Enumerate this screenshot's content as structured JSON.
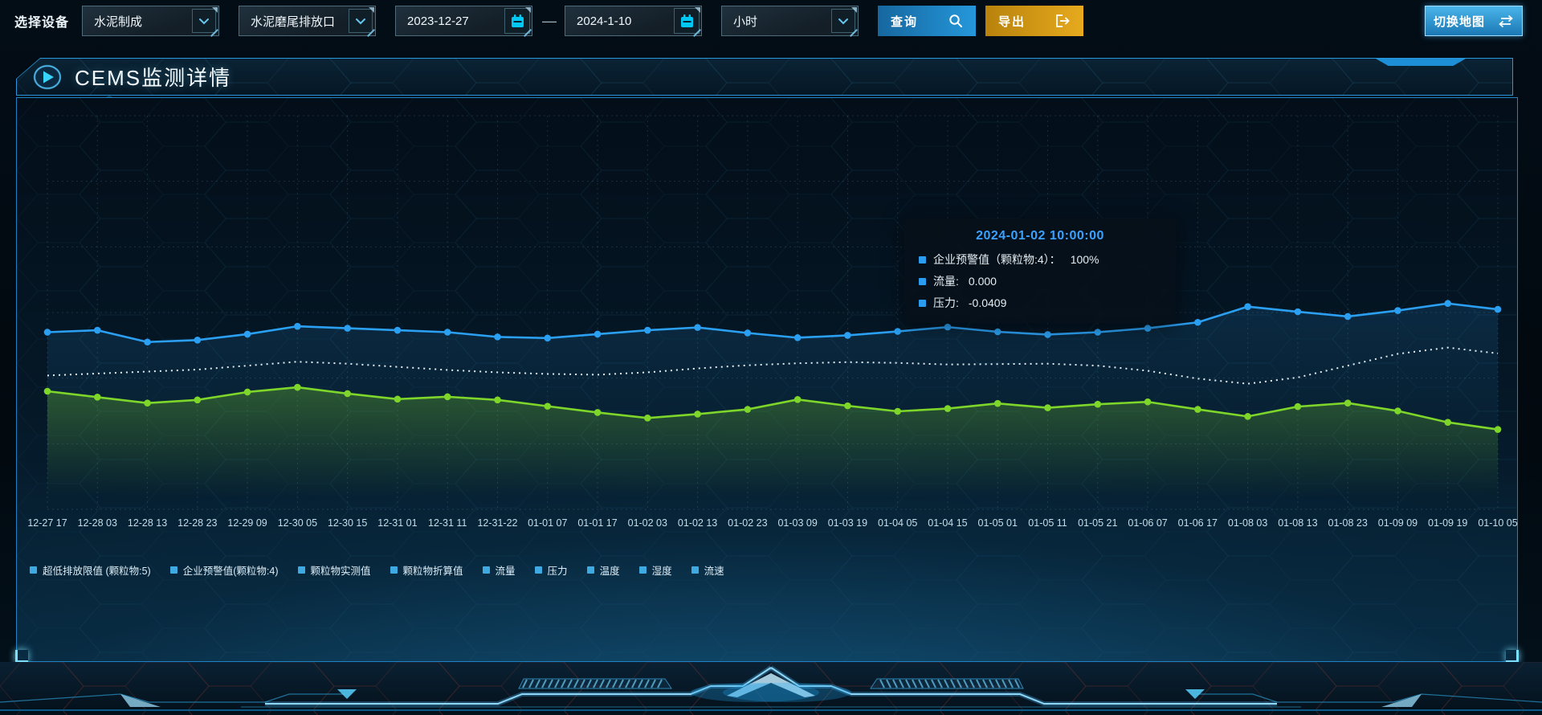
{
  "toolbar": {
    "device_label": "选择设备",
    "line_select": "水泥制成",
    "outlet_select": "水泥磨尾排放口",
    "start_date": "2023-12-27",
    "range_separator": "—",
    "end_date": "2024-1-10",
    "interval_select": "小时",
    "query_label": "查询",
    "export_label": "导出",
    "switch_map_label": "切换地图"
  },
  "panel": {
    "title": "CEMS监测详情"
  },
  "tooltip": {
    "title": "2024-01-02 10:00:00",
    "marker_color": "#2b9df0",
    "title_color": "#3ba1ff",
    "rows": [
      {
        "label": "企业预警值（颗粒物:4）：",
        "value": "100%"
      },
      {
        "label": "流量:",
        "value": "0.000"
      },
      {
        "label": "压力:",
        "value": "-0.0409"
      }
    ]
  },
  "chart_data": {
    "type": "line",
    "title": "CEMS监测详情",
    "grid": {
      "dashed": true
    },
    "y_axis": {
      "tick_labels_visible": false,
      "value_encoding": "percent_of_plot_height_estimated"
    },
    "x_axis": {
      "labels": [
        "12-27 17",
        "12-28 03",
        "12-28 13",
        "12-28 23",
        "12-29 09",
        "12-30 05",
        "12-30 15",
        "12-31 01",
        "12-31 11",
        "12-31-22",
        "01-01 07",
        "01-01 17",
        "01-02 03",
        "01-02 13",
        "01-02 23",
        "01-03 09",
        "01-03 19",
        "01-04 05",
        "01-04 15",
        "01-05 01",
        "01-05 11",
        "01-05 21",
        "01-06 07",
        "01-06 17",
        "01-08 03",
        "01-08 13",
        "01-08 23",
        "01-09 09",
        "01-09 19",
        "01-10 05"
      ]
    },
    "legend": {
      "position": "bottom-left",
      "marker_color": "#3fa9e2",
      "items": [
        "超低排放限值 (颗粒物:5)",
        "企业预警值(颗粒物:4)",
        "颗粒物实测值",
        "颗粒物折算值",
        "流量",
        "压力",
        "温度",
        "湿度",
        "流速"
      ]
    },
    "series": [
      {
        "name": "企业预警值(颗粒物:4)",
        "color": "#e3edf2",
        "style": "dotted",
        "markers": false,
        "area": false,
        "area_opacity": 0,
        "values_pct": [
          34,
          34.5,
          35,
          35.5,
          36.5,
          37.5,
          37,
          36.2,
          35.4,
          34.8,
          34.4,
          34.2,
          34.8,
          35.8,
          36.6,
          37.1,
          37.4,
          37.2,
          36.8,
          36.9,
          37,
          36.5,
          35.2,
          33.2,
          31.9,
          33.5,
          36.5,
          39.5,
          41.1,
          39.6
        ]
      },
      {
        "name": "流量",
        "color": "#2ba0f2",
        "style": "solid",
        "markers": true,
        "area": true,
        "area_opacity": 0.15,
        "values_pct": [
          45,
          45.5,
          42.5,
          43,
          44.5,
          46.5,
          46,
          45.5,
          45,
          43.8,
          43.5,
          44.5,
          45.5,
          46.2,
          44.8,
          43.6,
          44.2,
          45.2,
          46.3,
          45.1,
          44.4,
          45,
          46,
          47.5,
          51.5,
          50.2,
          49,
          50.5,
          52.3,
          50.8
        ]
      },
      {
        "name": "压力",
        "color": "#7ed62a",
        "style": "solid",
        "markers": true,
        "area": true,
        "area_opacity": 0.3,
        "values_pct": [
          30,
          28.5,
          27,
          27.8,
          29.8,
          31,
          29.4,
          28,
          28.6,
          27.8,
          26.2,
          24.6,
          23.2,
          24.2,
          25.4,
          27.9,
          26.3,
          24.9,
          25.6,
          26.9,
          25.8,
          26.7,
          27.3,
          25.4,
          23.6,
          26.1,
          27,
          25,
          22.1,
          20.3
        ]
      }
    ]
  }
}
